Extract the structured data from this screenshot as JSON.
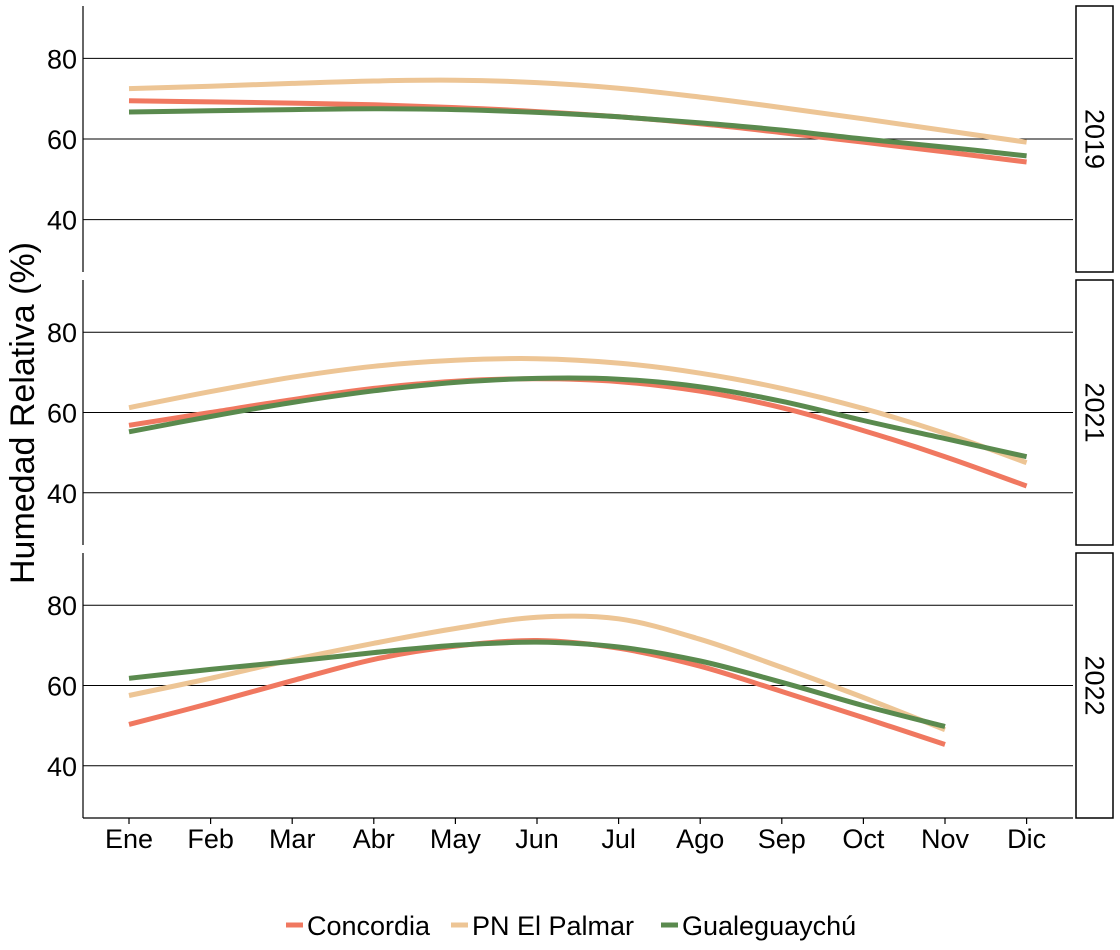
{
  "chart_data": {
    "type": "line",
    "title": "",
    "xlabel": "",
    "ylabel": "Humedad Relativa (%)",
    "categories": [
      "Ene",
      "Feb",
      "Mar",
      "Abr",
      "May",
      "Jun",
      "Jul",
      "Ago",
      "Sep",
      "Oct",
      "Nov",
      "Dic"
    ],
    "ylim": [
      27,
      93
    ],
    "yticks": [
      40,
      60,
      80
    ],
    "grid": "horizontal major lines",
    "legend_position": "bottom",
    "series_styles": [
      {
        "name": "Concordia",
        "color": "#F07860"
      },
      {
        "name": "PN El Palmar",
        "color": "#EDC595"
      },
      {
        "name": "Gualeguaychú",
        "color": "#5A8A4E"
      }
    ],
    "panels": [
      {
        "label": "2019",
        "series": [
          {
            "name": "Concordia",
            "values": [
              69.5,
              69.2,
              68.9,
              68.5,
              67.8,
              66.8,
              65.5,
              63.8,
              61.6,
              59.2,
              56.8,
              54.3
            ]
          },
          {
            "name": "PN El Palmar",
            "values": [
              72.5,
              73.1,
              73.8,
              74.4,
              74.6,
              74.0,
              72.6,
              70.4,
              67.8,
              65.0,
              62.1,
              59.2
            ]
          },
          {
            "name": "Gualeguaychú",
            "values": [
              66.7,
              67.0,
              67.3,
              67.5,
              67.3,
              66.6,
              65.5,
              64.0,
              62.2,
              60.0,
              58.0,
              55.8
            ]
          }
        ]
      },
      {
        "label": "2021",
        "series": [
          {
            "name": "Concordia",
            "values": [
              56.8,
              60.0,
              63.2,
              66.0,
              67.8,
              68.4,
              67.7,
              65.3,
              61.2,
              55.5,
              49.0,
              41.7
            ]
          },
          {
            "name": "PN El Palmar",
            "values": [
              61.2,
              65.2,
              68.8,
              71.5,
              73.0,
              73.4,
              72.3,
              69.8,
              66.0,
              61.0,
              54.8,
              47.5
            ]
          },
          {
            "name": "Gualeguaychú",
            "values": [
              55.2,
              59.0,
              62.5,
              65.4,
              67.5,
              68.5,
              68.3,
              66.4,
              62.8,
              58.0,
              53.5,
              49.0
            ]
          }
        ]
      },
      {
        "label": "2022",
        "series": [
          {
            "name": "Concordia",
            "values": [
              50.3,
              55.6,
              61.2,
              66.5,
              69.8,
              71.2,
              69.3,
              64.8,
              58.5,
              52.0,
              45.3
            ]
          },
          {
            "name": "PN El Palmar",
            "values": [
              57.5,
              61.8,
              66.4,
              70.5,
              74.2,
              77.0,
              76.6,
              71.5,
              64.5,
              57.0,
              49.0
            ]
          },
          {
            "name": "Gualeguaychú",
            "values": [
              61.8,
              64.0,
              66.0,
              68.2,
              70.0,
              70.8,
              69.6,
              66.1,
              60.8,
              55.0,
              49.8
            ]
          }
        ]
      }
    ]
  }
}
